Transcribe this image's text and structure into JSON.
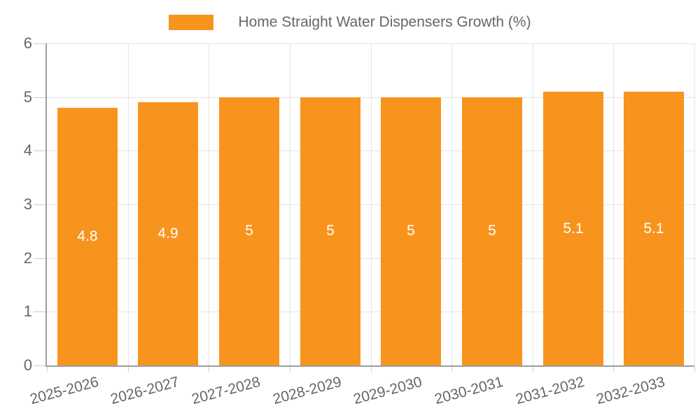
{
  "legend": {
    "label": "Home Straight Water Dispensers Growth (%)",
    "swatch_color": "#F7941E"
  },
  "chart_data": {
    "type": "bar",
    "title": "Home Straight Water Dispensers Growth (%)",
    "categories": [
      "2025-2026",
      "2026-2027",
      "2027-2028",
      "2028-2029",
      "2029-2030",
      "2030-2031",
      "2031-2032",
      "2032-2033"
    ],
    "values": [
      4.8,
      4.9,
      5,
      5,
      5,
      5,
      5.1,
      5.1
    ],
    "value_labels": [
      "4.8",
      "4.9",
      "5",
      "5",
      "5",
      "5",
      "5.1",
      "5.1"
    ],
    "xlabel": "",
    "ylabel": "",
    "ylim": [
      0,
      6
    ],
    "y_ticks": [
      0,
      1,
      2,
      3,
      4,
      5,
      6
    ],
    "y_tick_labels": [
      "0",
      "1",
      "2",
      "3",
      "4",
      "5",
      "6"
    ],
    "grid": true,
    "legend_position": "top-center",
    "colors": {
      "bar": "#F7941E",
      "value_label": "#FFFFFF",
      "axis_line": "#9E9E9E",
      "gridline": "#E4E4E4",
      "tick": "#CCCCCC",
      "text": "#666666",
      "background": "#FFFFFF"
    }
  }
}
